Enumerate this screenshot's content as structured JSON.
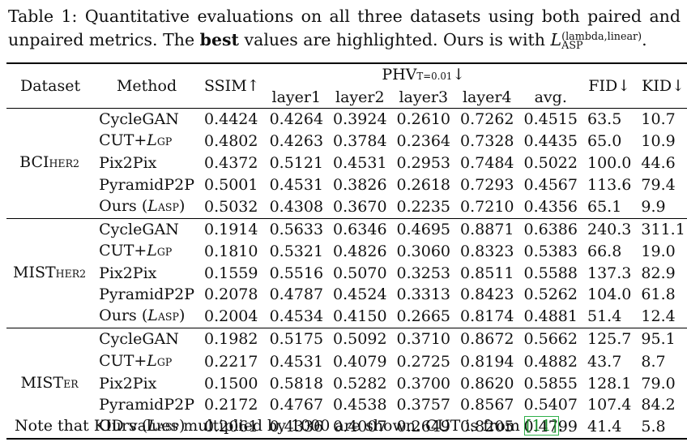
{
  "caption": {
    "prefix": "Table 1: Quantitative evaluations on all three datasets using both paired and unpaired metrics. The",
    "bold_word": "best",
    "middle": "values are highlighted. Ours is with",
    "loss_letter": "L",
    "loss_sup": "(lambda,linear)",
    "loss_sub": "ASP",
    "end": "."
  },
  "table": {
    "headers": {
      "dataset": "Dataset",
      "method": "Method",
      "ssim": "SSIM↑",
      "phv_group": "PHV",
      "phv_sub": "T=0.01",
      "phv_arrow": "↓",
      "layers": [
        "layer1",
        "layer2",
        "layer3",
        "layer4",
        "avg."
      ],
      "fid": "FID↓",
      "kid": "KID↓"
    },
    "groups": [
      {
        "dataset": "BCI",
        "dataset_sub": "HER2",
        "rows": [
          {
            "method": "CycleGAN",
            "loss_sub": "",
            "values": [
              "0.4424",
              "0.4264",
              "0.3924",
              "0.2610",
              "0.7262",
              "0.4515",
              "63.5",
              "10.7"
            ],
            "bold": [
              false,
              false,
              false,
              false,
              false,
              false,
              true,
              false
            ]
          },
          {
            "method": "CUT+",
            "loss_sub": "GP",
            "values": [
              "0.4802",
              "0.4263",
              "0.3784",
              "0.2364",
              "0.7328",
              "0.4435",
              "65.0",
              "10.9"
            ],
            "bold": [
              false,
              true,
              false,
              false,
              false,
              false,
              false,
              false
            ]
          },
          {
            "method": "Pix2Pix",
            "loss_sub": "",
            "values": [
              "0.4372",
              "0.5121",
              "0.4531",
              "0.2953",
              "0.7484",
              "0.5022",
              "100.0",
              "44.6"
            ],
            "bold": [
              false,
              false,
              false,
              false,
              false,
              false,
              false,
              false
            ]
          },
          {
            "method": "PyramidP2P",
            "loss_sub": "",
            "values": [
              "0.5001",
              "0.4531",
              "0.3826",
              "0.2618",
              "0.7293",
              "0.4567",
              "113.6",
              "79.4"
            ],
            "bold": [
              false,
              false,
              false,
              false,
              false,
              false,
              false,
              false
            ]
          },
          {
            "method": "Ours (",
            "loss_sub": "ASP",
            "values": [
              "0.5032",
              "0.4308",
              "0.3670",
              "0.2235",
              "0.7210",
              "0.4356",
              "65.1",
              "9.9"
            ],
            "bold": [
              true,
              false,
              true,
              true,
              true,
              true,
              false,
              true
            ]
          }
        ]
      },
      {
        "dataset": "MIST",
        "dataset_sub": "HER2",
        "rows": [
          {
            "method": "CycleGAN",
            "loss_sub": "",
            "values": [
              "0.1914",
              "0.5633",
              "0.6346",
              "0.4695",
              "0.8871",
              "0.6386",
              "240.3",
              "311.1"
            ],
            "bold": [
              false,
              false,
              false,
              false,
              false,
              false,
              false,
              false
            ]
          },
          {
            "method": "CUT+",
            "loss_sub": "GP",
            "values": [
              "0.1810",
              "0.5321",
              "0.4826",
              "0.3060",
              "0.8323",
              "0.5383",
              "66.8",
              "19.0"
            ],
            "bold": [
              false,
              false,
              false,
              false,
              false,
              false,
              false,
              false
            ]
          },
          {
            "method": "Pix2Pix",
            "loss_sub": "",
            "values": [
              "0.1559",
              "0.5516",
              "0.5070",
              "0.3253",
              "0.8511",
              "0.5588",
              "137.3",
              "82.9"
            ],
            "bold": [
              false,
              false,
              false,
              false,
              false,
              false,
              false,
              false
            ]
          },
          {
            "method": "PyramidP2P",
            "loss_sub": "",
            "values": [
              "0.2078",
              "0.4787",
              "0.4524",
              "0.3313",
              "0.8423",
              "0.5262",
              "104.0",
              "61.8"
            ],
            "bold": [
              true,
              false,
              false,
              false,
              false,
              false,
              false,
              false
            ]
          },
          {
            "method": "Ours (",
            "loss_sub": "ASP",
            "values": [
              "0.2004",
              "0.4534",
              "0.4150",
              "0.2665",
              "0.8174",
              "0.4881",
              "51.4",
              "12.4"
            ],
            "bold": [
              false,
              true,
              true,
              true,
              true,
              true,
              true,
              true
            ]
          }
        ]
      },
      {
        "dataset": "MIST",
        "dataset_sub": "ER",
        "rows": [
          {
            "method": "CycleGAN",
            "loss_sub": "",
            "values": [
              "0.1982",
              "0.5175",
              "0.5092",
              "0.3710",
              "0.8672",
              "0.5662",
              "125.7",
              "95.1"
            ],
            "bold": [
              false,
              false,
              false,
              false,
              false,
              false,
              false,
              false
            ]
          },
          {
            "method": "CUT+",
            "loss_sub": "GP",
            "values": [
              "0.2217",
              "0.4531",
              "0.4079",
              "0.2725",
              "0.8194",
              "0.4882",
              "43.7",
              "8.7"
            ],
            "bold": [
              true,
              false,
              false,
              false,
              true,
              false,
              false,
              false
            ]
          },
          {
            "method": "Pix2Pix",
            "loss_sub": "",
            "values": [
              "0.1500",
              "0.5818",
              "0.5282",
              "0.3700",
              "0.8620",
              "0.5855",
              "128.1",
              "79.0"
            ],
            "bold": [
              false,
              false,
              false,
              false,
              false,
              false,
              false,
              false
            ]
          },
          {
            "method": "PyramidP2P",
            "loss_sub": "",
            "values": [
              "0.2172",
              "0.4767",
              "0.4538",
              "0.3757",
              "0.8567",
              "0.5407",
              "107.4",
              "84.2"
            ],
            "bold": [
              false,
              false,
              false,
              false,
              false,
              false,
              false,
              false
            ]
          },
          {
            "method": "Ours (",
            "loss_sub": "ASP",
            "values": [
              "0.2061",
              "0.4336",
              "0.4007",
              "0.2649",
              "0.8205",
              "0.4799",
              "41.4",
              "5.8"
            ],
            "bold": [
              false,
              true,
              true,
              true,
              false,
              true,
              true,
              true
            ]
          }
        ]
      }
    ],
    "note_prefix": "Note that KID values multiplied by 1000 are shown. CUT is from ",
    "note_cite": "[11]",
    "note_suffix": "."
  }
}
